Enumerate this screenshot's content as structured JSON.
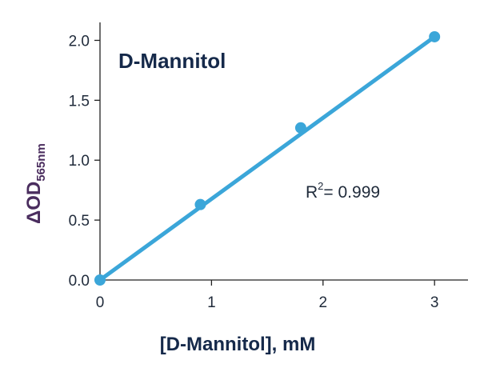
{
  "chart_data": {
    "type": "scatter",
    "title": "D-Mannitol",
    "xlabel": "[D-Mannitol], mM",
    "ylabel": {
      "delta": "Δ",
      "main": "OD",
      "subscript": "565nm"
    },
    "xlim": [
      0,
      3.3
    ],
    "ylim": [
      0,
      2.15
    ],
    "x_ticks": [
      {
        "value": 0,
        "label": "0"
      },
      {
        "value": 1,
        "label": "1"
      },
      {
        "value": 2,
        "label": "2"
      },
      {
        "value": 3,
        "label": "3"
      }
    ],
    "y_ticks": [
      {
        "value": 0.0,
        "label": "0.0"
      },
      {
        "value": 0.5,
        "label": "0.5"
      },
      {
        "value": 1.0,
        "label": "1.0"
      },
      {
        "value": 1.5,
        "label": "1.5"
      },
      {
        "value": 2.0,
        "label": "2.0"
      }
    ],
    "series": [
      {
        "x": [
          0,
          0.9,
          1.8,
          3.0
        ],
        "y": [
          0.0,
          0.63,
          1.27,
          2.03
        ],
        "color": "#3ba6d9"
      }
    ],
    "fit_line": {
      "x": [
        0,
        3.0
      ],
      "y": [
        0.0,
        2.03
      ],
      "color": "#3ba6d9"
    },
    "annotation": {
      "r_letter": "R",
      "exponent": "2",
      "text": "= 0.999"
    },
    "grid": false,
    "legend": "none"
  }
}
